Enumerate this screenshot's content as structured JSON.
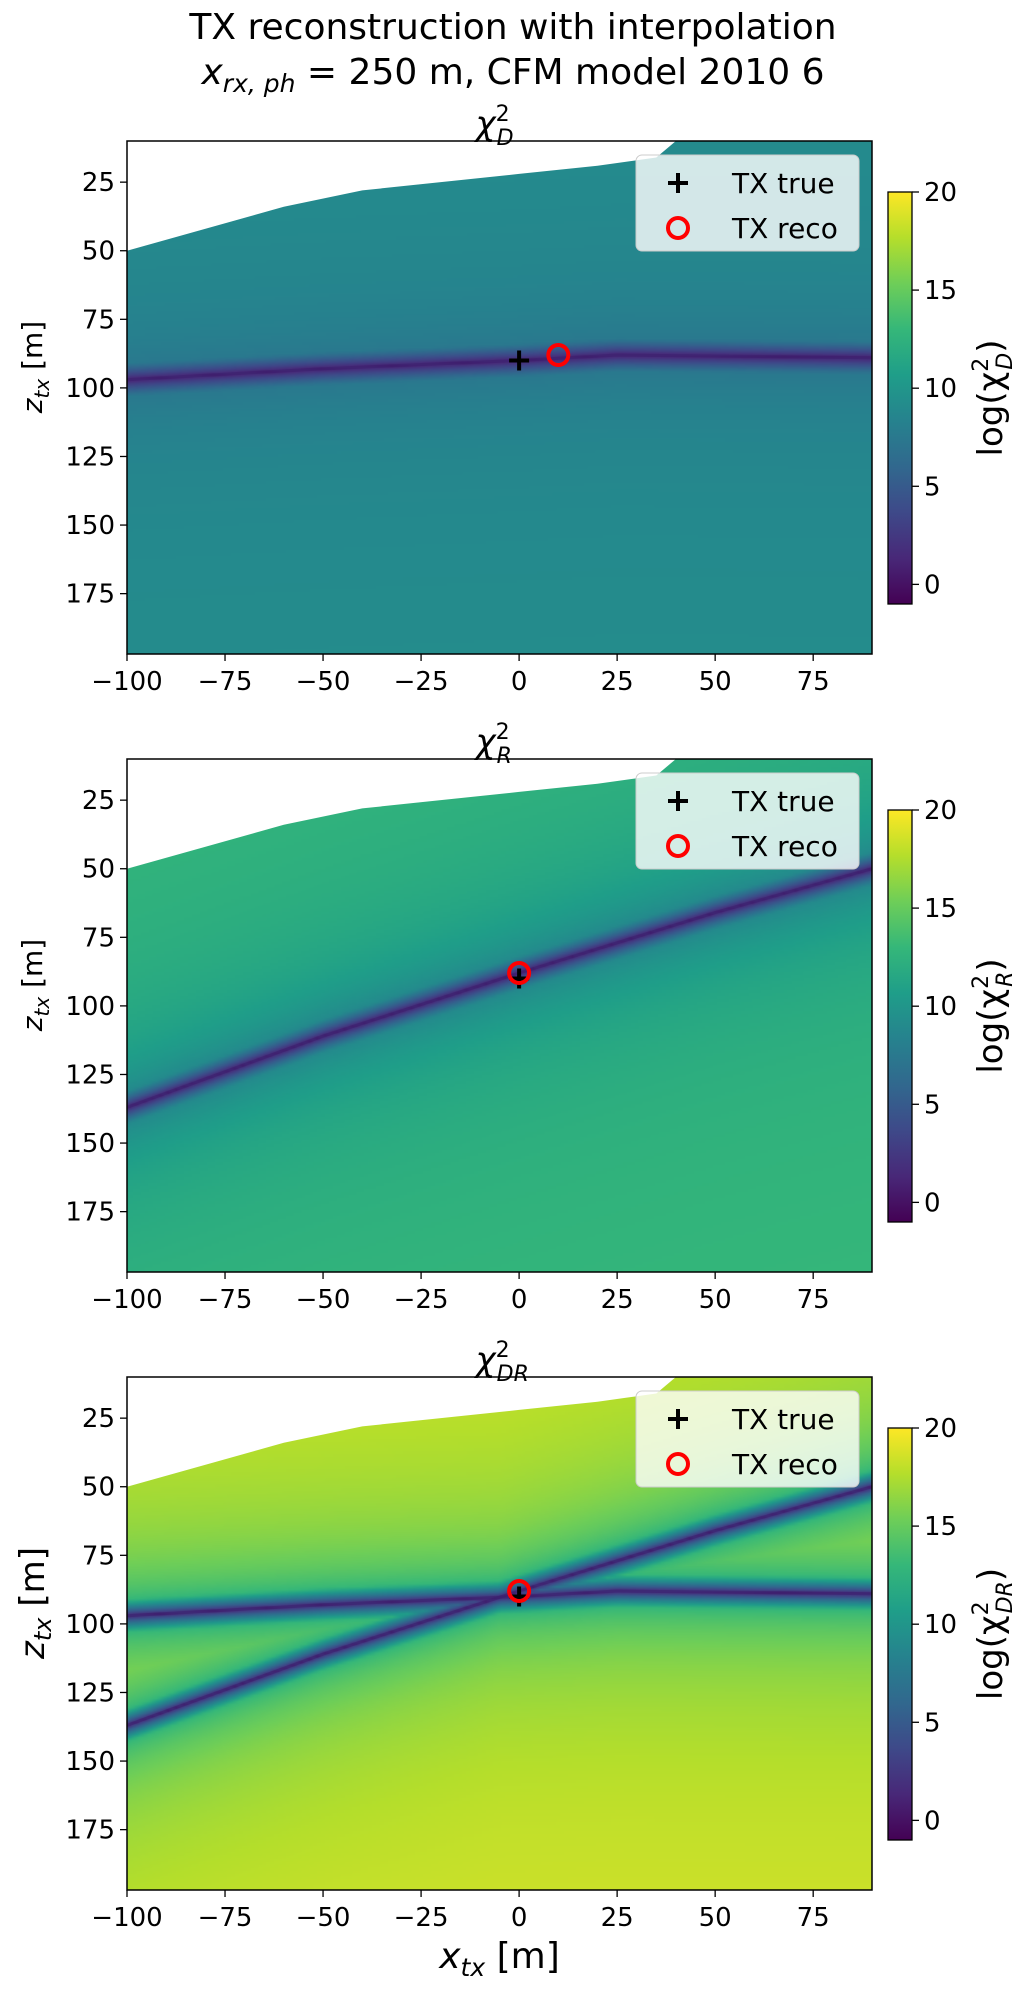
{
  "figure": {
    "title_line1": "TX reconstruction with interpolation",
    "title_line2_prefix": "x",
    "title_line2_sub": "rx, ph",
    "title_line2_suffix": " = 250 m, CFM model 2010 6"
  },
  "chart_data": [
    {
      "type": "heatmap",
      "title": "χ²_D",
      "title_main": "χ",
      "title_sup": "2",
      "title_sub": "D",
      "xlabel": "",
      "ylabel": "z_tx [m]",
      "ylabel_main": "z",
      "ylabel_sub": "tx",
      "ylabel_unit": " [m]",
      "xlim": [
        -100,
        90
      ],
      "ylim": [
        197,
        10
      ],
      "xticks": [
        -100,
        -75,
        -50,
        -25,
        0,
        25,
        50,
        75
      ],
      "xtick_labels": [
        "−100",
        "−75",
        "−50",
        "−25",
        "0",
        "25",
        "50",
        "75"
      ],
      "yticks": [
        25,
        50,
        75,
        100,
        125,
        150,
        175
      ],
      "ytick_labels": [
        "25",
        "50",
        "75",
        "100",
        "125",
        "150",
        "175"
      ],
      "colorbar": {
        "label": "log(χ²_D)",
        "label_main": "log(χ",
        "label_sup": "2",
        "label_sub": "D",
        "label_end": ")",
        "range": [
          -1,
          20
        ],
        "ticks": [
          0,
          5,
          10,
          15,
          20
        ],
        "tick_labels": [
          "0",
          "5",
          "10",
          "15",
          "20"
        ],
        "colormap": "viridis"
      },
      "valid_region_top_boundary": [
        {
          "x": -100,
          "z": 50
        },
        {
          "x": -60,
          "z": 34
        },
        {
          "x": -40,
          "z": 28
        },
        {
          "x": 0,
          "z": 22
        },
        {
          "x": 20,
          "z": 19
        },
        {
          "x": 35,
          "z": 16
        },
        {
          "x": 40,
          "z": 10
        }
      ],
      "minimum_valley": {
        "curves": [
          [
            {
              "x": -100,
              "z": 97
            },
            {
              "x": -50,
              "z": 93
            },
            {
              "x": 0,
              "z": 90
            },
            {
              "x": 25,
              "z": 88
            },
            {
              "x": 90,
              "z": 89
            }
          ]
        ]
      },
      "background_log_chi2": {
        "near_valley": 7.5,
        "far_field": 9.5
      },
      "markers": [
        {
          "label": "TX true",
          "symbol": "plus",
          "color": "#000000",
          "x": 0,
          "z": 90
        },
        {
          "label": "TX reco",
          "symbol": "circle",
          "color": "#ff0000",
          "x": 10,
          "z": 88
        }
      ],
      "legend": {
        "placement": "upper right",
        "entries": [
          "TX true",
          "TX reco"
        ]
      }
    },
    {
      "type": "heatmap",
      "title": "χ²_R",
      "title_main": "χ",
      "title_sup": "2",
      "title_sub": "R",
      "xlabel": "",
      "ylabel": "z_tx [m]",
      "ylabel_main": "z",
      "ylabel_sub": "tx",
      "ylabel_unit": " [m]",
      "xlim": [
        -100,
        90
      ],
      "ylim": [
        197,
        10
      ],
      "xticks": [
        -100,
        -75,
        -50,
        -25,
        0,
        25,
        50,
        75
      ],
      "xtick_labels": [
        "−100",
        "−75",
        "−50",
        "−25",
        "0",
        "25",
        "50",
        "75"
      ],
      "yticks": [
        25,
        50,
        75,
        100,
        125,
        150,
        175
      ],
      "ytick_labels": [
        "25",
        "50",
        "75",
        "100",
        "125",
        "150",
        "175"
      ],
      "colorbar": {
        "label": "log(χ²_R)",
        "label_main": "log(χ",
        "label_sup": "2",
        "label_sub": "R",
        "label_end": ")",
        "range": [
          -1,
          20
        ],
        "ticks": [
          0,
          5,
          10,
          15,
          20
        ],
        "tick_labels": [
          "0",
          "5",
          "10",
          "15",
          "20"
        ],
        "colormap": "viridis"
      },
      "valid_region_top_boundary": [
        {
          "x": -100,
          "z": 50
        },
        {
          "x": -60,
          "z": 34
        },
        {
          "x": -40,
          "z": 28
        },
        {
          "x": 0,
          "z": 22
        },
        {
          "x": 20,
          "z": 19
        },
        {
          "x": 35,
          "z": 16
        },
        {
          "x": 40,
          "z": 10
        }
      ],
      "minimum_valley": {
        "curves": [
          [
            {
              "x": -100,
              "z": 137
            },
            {
              "x": -50,
              "z": 111
            },
            {
              "x": 0,
              "z": 88
            },
            {
              "x": 50,
              "z": 66
            },
            {
              "x": 90,
              "z": 50
            }
          ]
        ]
      },
      "background_log_chi2": {
        "near_valley": 9,
        "far_field": 13.5
      },
      "markers": [
        {
          "label": "TX true",
          "symbol": "plus",
          "color": "#000000",
          "x": 0,
          "z": 90
        },
        {
          "label": "TX reco",
          "symbol": "circle",
          "color": "#ff0000",
          "x": 0,
          "z": 88
        }
      ],
      "legend": {
        "placement": "upper right",
        "entries": [
          "TX true",
          "TX reco"
        ]
      }
    },
    {
      "type": "heatmap",
      "title": "χ²_DR",
      "title_main": "χ",
      "title_sup": "2",
      "title_sub": "DR",
      "xlabel": "x_tx [m]",
      "xlabel_main": "x",
      "xlabel_sub": "tx",
      "xlabel_unit": " [m]",
      "ylabel": "z_tx [m]",
      "ylabel_main": "z",
      "ylabel_sub": "tx",
      "ylabel_unit": " [m]",
      "xlim": [
        -100,
        90
      ],
      "ylim": [
        197,
        10
      ],
      "xticks": [
        -100,
        -75,
        -50,
        -25,
        0,
        25,
        50,
        75
      ],
      "xtick_labels": [
        "−100",
        "−75",
        "−50",
        "−25",
        "0",
        "25",
        "50",
        "75"
      ],
      "yticks": [
        25,
        50,
        75,
        100,
        125,
        150,
        175
      ],
      "ytick_labels": [
        "25",
        "50",
        "75",
        "100",
        "125",
        "150",
        "175"
      ],
      "colorbar": {
        "label": "log(χ²_DR)",
        "label_main": "log(χ",
        "label_sup": "2",
        "label_sub": "DR",
        "label_end": ")",
        "range": [
          -1,
          20
        ],
        "ticks": [
          0,
          5,
          10,
          15,
          20
        ],
        "tick_labels": [
          "0",
          "5",
          "10",
          "15",
          "20"
        ],
        "colormap": "viridis"
      },
      "valid_region_top_boundary": [
        {
          "x": -100,
          "z": 50
        },
        {
          "x": -60,
          "z": 34
        },
        {
          "x": -40,
          "z": 28
        },
        {
          "x": 0,
          "z": 22
        },
        {
          "x": 20,
          "z": 19
        },
        {
          "x": 35,
          "z": 16
        },
        {
          "x": 40,
          "z": 10
        }
      ],
      "minimum_valley": {
        "curves": [
          [
            {
              "x": -100,
              "z": 97
            },
            {
              "x": -50,
              "z": 93
            },
            {
              "x": 0,
              "z": 90
            },
            {
              "x": 25,
              "z": 88
            },
            {
              "x": 90,
              "z": 89
            }
          ],
          [
            {
              "x": -100,
              "z": 137
            },
            {
              "x": -50,
              "z": 111
            },
            {
              "x": 0,
              "z": 88
            },
            {
              "x": 50,
              "z": 66
            },
            {
              "x": 90,
              "z": 50
            }
          ]
        ]
      },
      "background_log_chi2": {
        "near_valley": 13,
        "far_field": 19.5
      },
      "markers": [
        {
          "label": "TX true",
          "symbol": "plus",
          "color": "#000000",
          "x": 0,
          "z": 90
        },
        {
          "label": "TX reco",
          "symbol": "circle",
          "color": "#ff0000",
          "x": 0,
          "z": 88
        }
      ],
      "legend": {
        "placement": "upper right",
        "entries": [
          "TX true",
          "TX reco"
        ]
      }
    }
  ]
}
